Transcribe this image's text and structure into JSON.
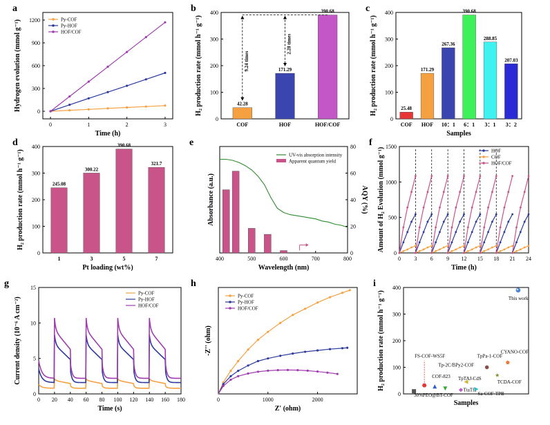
{
  "chart_data": [
    {
      "panel": "a",
      "type": "line",
      "xlabel": "Time (h)",
      "ylabel": "Hydrogen evolution (mmol g⁻¹)",
      "xlim": [
        -0.2,
        3.2
      ],
      "ylim": [
        -100,
        1300
      ],
      "xticks": [
        0,
        1,
        2,
        3
      ],
      "yticks": [
        0,
        300,
        600,
        900,
        1200
      ],
      "legend_position": "top-left",
      "x": [
        0,
        0.5,
        1,
        1.5,
        2,
        2.5,
        3
      ],
      "series": [
        {
          "name": "Py-COF",
          "color": "#f5a142",
          "values": [
            0,
            13,
            25,
            38,
            50,
            62,
            75
          ]
        },
        {
          "name": "Py-HOF",
          "color": "#2b3a9c",
          "values": [
            0,
            85,
            170,
            252,
            335,
            420,
            505
          ]
        },
        {
          "name": "HOF/COF",
          "color": "#a03cb0",
          "values": [
            0,
            195,
            390,
            585,
            780,
            975,
            1170
          ]
        }
      ]
    },
    {
      "panel": "b",
      "type": "bar",
      "ylabel": "H₂ production rate (mmol h⁻¹ g⁻¹)",
      "ylim": [
        0,
        400
      ],
      "yticks": [
        0,
        100,
        200,
        300,
        400
      ],
      "categories": [
        "COF",
        "HOF",
        "HOF/COF"
      ],
      "values": [
        42.28,
        171.29,
        390.68
      ],
      "labels": [
        "42.28",
        "171.29",
        "390.68"
      ],
      "colors": [
        "#f5a142",
        "#3a45b0",
        "#c357c8"
      ],
      "annotations": [
        {
          "text": "9.24 times",
          "color": "#f07a3a"
        },
        {
          "text": "2.28 times",
          "color": "#2b3ab0"
        }
      ]
    },
    {
      "panel": "c",
      "type": "bar",
      "xlabel": "Samples",
      "ylabel": "H₂ production rate (mmol h⁻¹ g⁻¹)",
      "ylim": [
        0,
        400
      ],
      "yticks": [
        0,
        100,
        200,
        300,
        400
      ],
      "categories": [
        "COF",
        "HOF",
        "10：1",
        "6：1",
        "3：1",
        "3：2"
      ],
      "values": [
        25.48,
        171.29,
        267.36,
        390.68,
        288.85,
        207.03
      ],
      "labels": [
        "25.48",
        "171.29",
        "267.36",
        "390.68",
        "288.85",
        "207.03"
      ],
      "colors": [
        "#e83535",
        "#f5a142",
        "#3a45b0",
        "#3ef05a",
        "#3ff2f2",
        "#2b2bd6"
      ]
    },
    {
      "panel": "d",
      "type": "bar",
      "xlabel": "Pt loading (wt%)",
      "ylabel": "H₂ production rate (mmol h⁻¹ g⁻¹)",
      "ylim": [
        0,
        400
      ],
      "yticks": [
        0,
        100,
        200,
        300,
        400
      ],
      "categories": [
        "1",
        "3",
        "5",
        "7"
      ],
      "values": [
        245.08,
        300.22,
        390.68,
        321.7
      ],
      "labels": [
        "245.08",
        "300.22",
        "390.68",
        "321.7"
      ],
      "colors": [
        "#c8548a",
        "#c8548a",
        "#c8548a",
        "#c8548a"
      ]
    },
    {
      "panel": "e",
      "type": "line",
      "xlabel": "Wavelength (nm)",
      "ylabel": "Absorbance (a.u.)",
      "ylabel2": "AQY (%)",
      "xlim": [
        400,
        800
      ],
      "xticks": [
        400,
        500,
        600,
        700,
        800
      ],
      "y2lim": [
        0,
        80
      ],
      "y2ticks": [
        0,
        20,
        40,
        60,
        80
      ],
      "legend_position": "top-right",
      "absorbance": {
        "name": "UV-vis absorption intensity",
        "color": "#2e8b2e",
        "x": [
          400,
          420,
          440,
          460,
          480,
          500,
          520,
          540,
          560,
          580,
          600,
          620,
          640,
          660,
          680,
          700,
          720,
          740,
          760,
          780,
          800
        ],
        "y": [
          0.88,
          0.88,
          0.87,
          0.85,
          0.82,
          0.78,
          0.72,
          0.64,
          0.52,
          0.42,
          0.38,
          0.36,
          0.35,
          0.34,
          0.33,
          0.32,
          0.3,
          0.29,
          0.27,
          0.26,
          0.24
        ]
      },
      "aqy": {
        "name": "Apparent quantum yield",
        "color": "#c8548a",
        "wavelengths": [
          420,
          450,
          500,
          550,
          600
        ],
        "values": [
          47.5,
          61.5,
          18.5,
          14,
          1.8
        ]
      }
    },
    {
      "panel": "f",
      "type": "line",
      "xlabel": "Time (h)",
      "ylabel": "Amount of H₂ Evolution (mmol g⁻¹)",
      "xlim": [
        0,
        24
      ],
      "ylim": [
        0,
        1500
      ],
      "xticks": [
        0,
        3,
        6,
        9,
        12,
        15,
        18,
        21,
        24
      ],
      "yticks": [
        0,
        500,
        1000,
        1500
      ],
      "cycle_boundaries": [
        3,
        6,
        9,
        12,
        15,
        18
      ],
      "legend_position": "top-right",
      "cycle_length_h": 3,
      "series": [
        {
          "name": "HOF",
          "color": "#2b3a9c",
          "cycle_values": [
            0,
            150,
            295,
            440,
            545
          ]
        },
        {
          "name": "COF",
          "color": "#f5a142",
          "cycle_values": [
            0,
            25,
            50,
            78,
            100
          ]
        },
        {
          "name": "HOF/COF",
          "color": "#c8548a",
          "cycle_values": [
            0,
            360,
            640,
            860,
            1085
          ]
        }
      ]
    },
    {
      "panel": "g",
      "type": "line",
      "xlabel": "Time (s)",
      "ylabel": "Current density (10⁻⁶ A cm⁻²)",
      "xlim": [
        0,
        180
      ],
      "ylim": [
        0,
        15
      ],
      "xticks": [
        0,
        20,
        40,
        60,
        80,
        100,
        120,
        140,
        160,
        180
      ],
      "yticks": [
        0,
        5,
        10,
        15
      ],
      "legend_position": "top-right",
      "light_on_intervals": [
        [
          20,
          40
        ],
        [
          60,
          80
        ],
        [
          100,
          120
        ],
        [
          140,
          160
        ]
      ],
      "series": [
        {
          "name": "Py-COF",
          "color": "#f5a142",
          "baseline": 0.8,
          "on": 1.9
        },
        {
          "name": "Py-HOF",
          "color": "#2b3a9c",
          "baseline": 1.6,
          "on": 7.0
        },
        {
          "name": "HOF/COF",
          "color": "#a03cb0",
          "baseline": 2.2,
          "on": 9.0
        }
      ]
    },
    {
      "panel": "h",
      "type": "scatter",
      "xlabel": "Z' (ohm)",
      "ylabel": "-Z'' (ohm)",
      "xlim": [
        0,
        2800
      ],
      "xticks": [
        0,
        1000,
        2000
      ],
      "ylim": [
        0,
        1200
      ],
      "legend_position": "top-left",
      "series": [
        {
          "name": "Py-COF",
          "color": "#f5a142",
          "x": [
            0,
            100,
            250,
            400,
            600,
            800,
            1000,
            1250,
            1500,
            1750,
            2000,
            2250,
            2500,
            2650
          ],
          "y": [
            0,
            130,
            260,
            370,
            500,
            610,
            700,
            800,
            890,
            960,
            1030,
            1090,
            1140,
            1170
          ]
        },
        {
          "name": "Py-HOF",
          "color": "#2b3a9c",
          "x": [
            0,
            100,
            250,
            400,
            600,
            800,
            1000,
            1250,
            1500,
            1750,
            2000,
            2250,
            2500,
            2600
          ],
          "y": [
            0,
            110,
            200,
            260,
            320,
            370,
            400,
            430,
            455,
            475,
            490,
            505,
            515,
            520
          ]
        },
        {
          "name": "HOF/COF",
          "color": "#a03cb0",
          "x": [
            0,
            100,
            250,
            400,
            600,
            800,
            1000,
            1200,
            1400,
            1600,
            1800,
            2000,
            2200,
            2400
          ],
          "y": [
            0,
            90,
            160,
            200,
            230,
            250,
            262,
            268,
            270,
            268,
            262,
            252,
            240,
            225
          ]
        }
      ]
    },
    {
      "panel": "i",
      "type": "scatter",
      "xlabel": "Samples",
      "ylabel": "H₂ production rate (mmol h⁻¹ g⁻¹)",
      "ylim": [
        0,
        400
      ],
      "yticks": [
        0,
        100,
        200,
        300,
        400
      ],
      "points": [
        {
          "label": "30%PEO@BT-COF",
          "x": 1,
          "y": 10,
          "color": "#555555",
          "marker": "square"
        },
        {
          "label": "FS-COF-WS5F",
          "x": 2,
          "y": 32,
          "color": "#e83535",
          "marker": "circle"
        },
        {
          "label": "COF-823",
          "x": 3,
          "y": 28,
          "color": "#2b5fd6",
          "marker": "triangle"
        },
        {
          "label": "Tp-2C/BPy2-COF",
          "x": 4,
          "y": 20,
          "color": "#3aaa3a",
          "marker": "triangle-down"
        },
        {
          "label": "TpTAJ-CdS",
          "x": 5.5,
          "y": 15,
          "color": "#c059c8",
          "marker": "diamond"
        },
        {
          "label": "TtaTfa",
          "x": 6,
          "y": 45,
          "color": "#d6b030",
          "marker": "triangle-left"
        },
        {
          "label": "Sa-COF-TPB",
          "x": 7,
          "y": 18,
          "color": "#30c0c0",
          "marker": "triangle-right"
        },
        {
          "label": "TpPa-1-COF",
          "x": 8,
          "y": 100,
          "color": "#8b4a4a",
          "marker": "hexagon"
        },
        {
          "label": "TCDA-COF",
          "x": 9,
          "y": 70,
          "color": "#8b8b30",
          "marker": "star"
        },
        {
          "label": "CYANO-COF",
          "x": 10,
          "y": 118,
          "color": "#f07a3a",
          "marker": "pentagon"
        },
        {
          "label": "This work",
          "x": 11,
          "y": 390,
          "color": "#4a86d6",
          "marker": "sphere"
        }
      ]
    }
  ]
}
